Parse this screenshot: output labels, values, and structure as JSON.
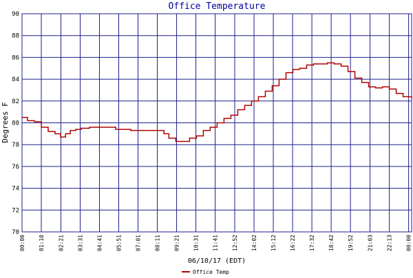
{
  "chart_data": {
    "type": "line",
    "title": "Office Temperature",
    "y_label": "Degrees F",
    "x_label": "06/10/17 (EDT)",
    "xlim": [
      0,
      1414
    ],
    "ylim": [
      70,
      90
    ],
    "yticks": [
      70,
      72,
      74,
      76,
      78,
      80,
      82,
      84,
      86,
      88,
      90
    ],
    "xticks": [
      {
        "value": 0,
        "label": "00:00"
      },
      {
        "value": 70,
        "label": "01:10"
      },
      {
        "value": 141,
        "label": "02:21"
      },
      {
        "value": 211,
        "label": "03:31"
      },
      {
        "value": 281,
        "label": "04:41"
      },
      {
        "value": 351,
        "label": "05:51"
      },
      {
        "value": 421,
        "label": "07:01"
      },
      {
        "value": 491,
        "label": "08:11"
      },
      {
        "value": 561,
        "label": "09:21"
      },
      {
        "value": 631,
        "label": "10:31"
      },
      {
        "value": 701,
        "label": "11:41"
      },
      {
        "value": 772,
        "label": "12:52"
      },
      {
        "value": 842,
        "label": "14:02"
      },
      {
        "value": 912,
        "label": "15:12"
      },
      {
        "value": 982,
        "label": "16:22"
      },
      {
        "value": 1052,
        "label": "17:32"
      },
      {
        "value": 1122,
        "label": "18:42"
      },
      {
        "value": 1192,
        "label": "19:52"
      },
      {
        "value": 1263,
        "label": "21:03"
      },
      {
        "value": 1333,
        "label": "22:13"
      },
      {
        "value": 1403,
        "label": "00:00"
      }
    ],
    "grid": true,
    "step": true,
    "x": [
      0,
      20,
      45,
      70,
      95,
      120,
      140,
      158,
      175,
      195,
      215,
      245,
      283,
      320,
      340,
      395,
      445,
      495,
      515,
      533,
      558,
      583,
      608,
      633,
      658,
      683,
      708,
      733,
      758,
      783,
      808,
      833,
      858,
      883,
      908,
      933,
      958,
      983,
      1008,
      1033,
      1058,
      1083,
      1108,
      1133,
      1158,
      1183,
      1208,
      1233,
      1258,
      1283,
      1308,
      1333,
      1358,
      1383,
      1414
    ],
    "series": [
      {
        "name": "Office Temp",
        "color": "#b00000",
        "values": [
          80.5,
          80.2,
          80.1,
          79.6,
          79.2,
          79.0,
          78.7,
          79.0,
          79.3,
          79.4,
          79.5,
          79.6,
          79.6,
          79.6,
          79.4,
          79.3,
          79.3,
          79.3,
          79.0,
          78.6,
          78.3,
          78.3,
          78.6,
          78.8,
          79.3,
          79.6,
          80.0,
          80.4,
          80.7,
          81.2,
          81.6,
          82.0,
          82.4,
          82.9,
          83.4,
          84.0,
          84.6,
          84.9,
          85.0,
          85.3,
          85.4,
          85.4,
          85.5,
          85.4,
          85.2,
          84.7,
          84.1,
          83.7,
          83.3,
          83.2,
          83.3,
          83.1,
          82.7,
          82.4,
          82.2
        ]
      }
    ]
  }
}
